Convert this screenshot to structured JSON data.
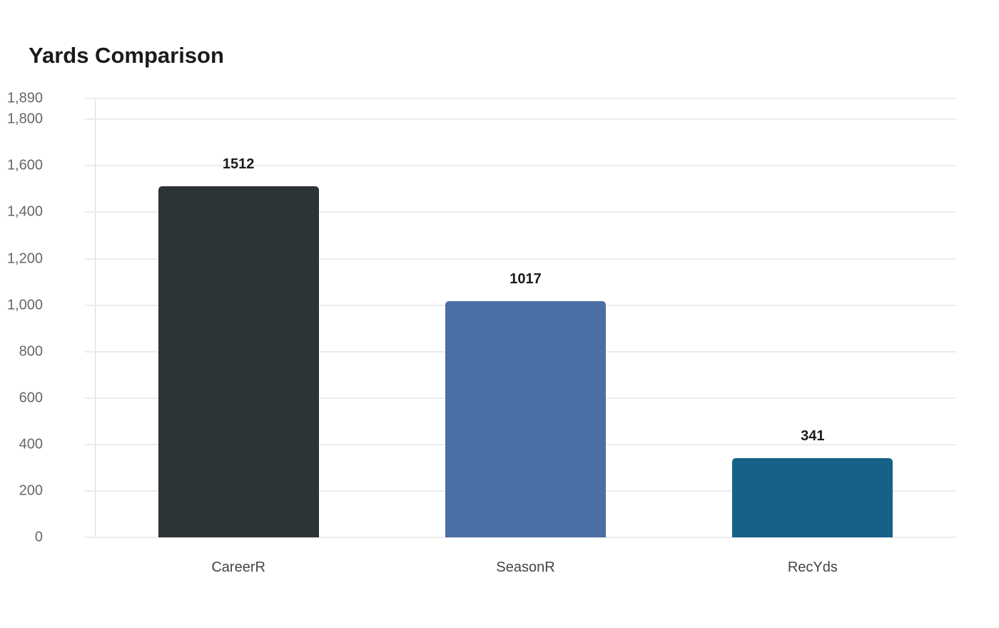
{
  "title": "Yards Comparison",
  "chart_data": {
    "type": "bar",
    "title": "Yards Comparison",
    "categories": [
      "CareerR",
      "SeasonR",
      "RecYds"
    ],
    "values": [
      1512,
      1017,
      341
    ],
    "colors": [
      "#2d3436",
      "#4a6fa5",
      "#166186"
    ],
    "xlabel": "",
    "ylabel": "",
    "ylim": [
      0,
      1890
    ],
    "yticks": [
      "0",
      "200",
      "400",
      "600",
      "800",
      "1,000",
      "1,200",
      "1,400",
      "1,600",
      "1,800",
      "1,890"
    ],
    "ytick_values": [
      0,
      200,
      400,
      600,
      800,
      1000,
      1200,
      1400,
      1600,
      1800,
      1890
    ],
    "grid": true,
    "legend": false,
    "data_labels": [
      "1512",
      "1017",
      "341"
    ]
  }
}
